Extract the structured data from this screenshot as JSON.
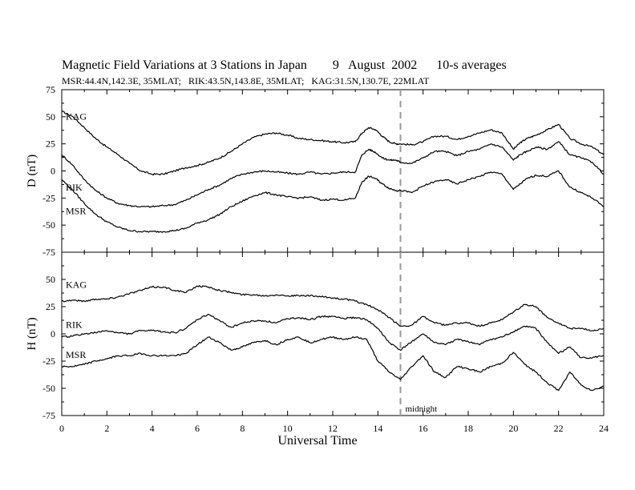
{
  "title": "Magnetic Field Variations at 3 Stations in Japan        9   August  2002      10-s averages",
  "subtitle": "MSR:44.4N,142.3E, 35MLAT;   RIK:43.5N,143.8E, 35MLAT;   KAG:31.5N,130.7E, 22MLAT",
  "chart_data": [
    {
      "type": "line",
      "panel": "D",
      "ylabel": "D (nT)",
      "ylim": [
        -75,
        75
      ],
      "yticks": [
        -75,
        -50,
        -25,
        0,
        25,
        50,
        75
      ],
      "xlim": [
        0,
        24
      ],
      "xticks": [
        0,
        2,
        4,
        6,
        8,
        10,
        12,
        14,
        16,
        18,
        20,
        22,
        24
      ],
      "marker_line_x": 15,
      "series": [
        {
          "name": "KAG",
          "x": [
            0,
            0.5,
            1,
            1.5,
            2,
            2.5,
            3,
            3.5,
            4,
            4.5,
            5,
            5.5,
            6,
            6.5,
            7,
            7.5,
            8,
            8.5,
            9,
            9.5,
            10,
            10.5,
            11,
            11.5,
            12,
            12.5,
            13,
            13.3,
            13.6,
            13.9,
            14.2,
            14.5,
            14.8,
            15,
            15.5,
            16,
            16.5,
            17,
            17.5,
            18,
            18.5,
            19,
            19.5,
            20,
            20.3,
            20.6,
            21,
            21.5,
            22,
            22.5,
            23,
            23.5,
            24
          ],
          "y": [
            55,
            50,
            40,
            30,
            22,
            15,
            7,
            0,
            -3,
            -3,
            0,
            3,
            5,
            8,
            12,
            18,
            25,
            31,
            34,
            35,
            33,
            30,
            29,
            28,
            27,
            26,
            27,
            35,
            40,
            38,
            32,
            27,
            25,
            25,
            24,
            27,
            32,
            32,
            29,
            32,
            35,
            38,
            35,
            20,
            26,
            30,
            33,
            38,
            43,
            30,
            25,
            22,
            15
          ]
        },
        {
          "name": "RIK",
          "x": [
            0,
            0.5,
            1,
            1.5,
            2,
            2.5,
            3,
            3.5,
            4,
            4.5,
            5,
            5.5,
            6,
            6.5,
            7,
            7.5,
            8,
            8.5,
            9,
            9.5,
            10,
            10.5,
            11,
            11.5,
            12,
            12.5,
            13,
            13.3,
            13.6,
            13.9,
            14.2,
            14.5,
            14.8,
            15,
            15.5,
            16,
            16.5,
            17,
            17.5,
            18,
            18.5,
            19,
            19.5,
            20,
            20.3,
            20.6,
            21,
            21.5,
            22,
            22.5,
            23,
            23.5,
            24
          ],
          "y": [
            15,
            5,
            -8,
            -18,
            -25,
            -30,
            -32,
            -33,
            -33,
            -32,
            -31,
            -27,
            -22,
            -17,
            -13,
            -7,
            -3,
            -1,
            0,
            -1,
            -2,
            -3,
            -1,
            -3,
            -2,
            -1,
            -1,
            15,
            20,
            17,
            12,
            10,
            10,
            8,
            7,
            12,
            18,
            18,
            14,
            18,
            20,
            25,
            22,
            10,
            15,
            18,
            22,
            20,
            27,
            15,
            12,
            8,
            -3
          ]
        },
        {
          "name": "MSR",
          "x": [
            0,
            0.5,
            1,
            1.5,
            2,
            2.5,
            3,
            3.5,
            4,
            4.5,
            5,
            5.5,
            6,
            6.5,
            7,
            7.5,
            8,
            8.5,
            9,
            9.5,
            10,
            10.5,
            11,
            11.5,
            12,
            12.5,
            13,
            13.3,
            13.6,
            13.9,
            14.2,
            14.5,
            14.8,
            15,
            15.5,
            16,
            16.5,
            17,
            17.5,
            18,
            18.5,
            19,
            19.5,
            20,
            20.3,
            20.6,
            21,
            21.5,
            22,
            22.5,
            23,
            23.5,
            24
          ],
          "y": [
            -8,
            -18,
            -30,
            -40,
            -47,
            -52,
            -55,
            -56,
            -56,
            -56,
            -55,
            -53,
            -48,
            -45,
            -40,
            -33,
            -28,
            -23,
            -20,
            -22,
            -24,
            -25,
            -24,
            -27,
            -26,
            -27,
            -25,
            -10,
            -5,
            -7,
            -12,
            -16,
            -18,
            -18,
            -20,
            -14,
            -10,
            -8,
            -12,
            -8,
            -5,
            -1,
            -3,
            -17,
            -12,
            -7,
            -4,
            -5,
            0,
            -15,
            -20,
            -25,
            -33
          ]
        }
      ]
    },
    {
      "type": "line",
      "panel": "H",
      "ylabel": "H (nT)",
      "xlabel": "Universal Time",
      "ylim": [
        -75,
        75
      ],
      "yticks": [
        -75,
        -50,
        -25,
        0,
        25,
        50
      ],
      "xlim": [
        0,
        24
      ],
      "xticks": [
        0,
        2,
        4,
        6,
        8,
        10,
        12,
        14,
        16,
        18,
        20,
        22,
        24
      ],
      "marker_line_x": 15,
      "marker_label": "midnight",
      "series": [
        {
          "name": "KAG",
          "x": [
            0,
            0.5,
            1,
            1.5,
            2,
            2.5,
            3,
            3.5,
            4,
            4.5,
            5,
            5.5,
            6,
            6.5,
            7,
            7.5,
            8,
            8.5,
            9,
            9.5,
            10,
            10.5,
            11,
            11.5,
            12,
            12.5,
            13,
            13.5,
            14,
            14.5,
            15,
            15.5,
            16,
            16.5,
            17,
            17.5,
            18,
            18.5,
            19,
            19.5,
            20,
            20.5,
            21,
            21.5,
            22,
            22.5,
            23,
            23.5,
            24
          ],
          "y": [
            30,
            31,
            30,
            32,
            32,
            34,
            37,
            40,
            43,
            43,
            40,
            38,
            44,
            43,
            40,
            38,
            36,
            36,
            35,
            36,
            35,
            35,
            35,
            34,
            33,
            32,
            30,
            27,
            22,
            15,
            7,
            8,
            16,
            10,
            8,
            10,
            10,
            7,
            10,
            13,
            20,
            27,
            25,
            15,
            10,
            5,
            5,
            3,
            5
          ]
        },
        {
          "name": "RIK",
          "x": [
            0,
            0.5,
            1,
            1.5,
            2,
            2.5,
            3,
            3.5,
            4,
            4.5,
            5,
            5.5,
            6,
            6.5,
            7,
            7.5,
            8,
            8.5,
            9,
            9.5,
            10,
            10.5,
            11,
            11.5,
            12,
            12.5,
            13,
            13.5,
            14,
            14.5,
            15,
            15.5,
            16,
            16.5,
            17,
            17.5,
            18,
            18.5,
            19,
            19.5,
            20,
            20.5,
            21,
            21.5,
            22,
            22.5,
            23,
            23.5,
            24
          ],
          "y": [
            -3,
            -2,
            0,
            1,
            3,
            1,
            0,
            3,
            3,
            2,
            1,
            5,
            13,
            18,
            12,
            6,
            10,
            12,
            12,
            10,
            14,
            15,
            13,
            16,
            16,
            14,
            15,
            13,
            5,
            -8,
            -15,
            -7,
            0,
            -8,
            -10,
            -5,
            -7,
            -10,
            -5,
            -3,
            2,
            7,
            5,
            -8,
            -18,
            -12,
            -22,
            -22,
            -20
          ]
        },
        {
          "name": "MSR",
          "x": [
            0,
            0.5,
            1,
            1.5,
            2,
            2.5,
            3,
            3.5,
            4,
            4.5,
            5,
            5.5,
            6,
            6.5,
            7,
            7.5,
            8,
            8.5,
            9,
            9.5,
            10,
            10.5,
            11,
            11.5,
            12,
            12.5,
            13,
            13.5,
            14,
            14.5,
            15,
            15.5,
            16,
            16.5,
            17,
            17.5,
            18,
            18.5,
            19,
            19.5,
            20,
            20.5,
            21,
            21.5,
            22,
            22.5,
            23,
            23.5,
            24
          ],
          "y": [
            -30,
            -30,
            -28,
            -25,
            -23,
            -20,
            -20,
            -18,
            -20,
            -20,
            -20,
            -18,
            -10,
            -3,
            -8,
            -15,
            -12,
            -8,
            -6,
            -10,
            -5,
            -3,
            -8,
            -5,
            -3,
            -5,
            -3,
            -5,
            -25,
            -35,
            -42,
            -30,
            -20,
            -35,
            -40,
            -30,
            -32,
            -35,
            -30,
            -27,
            -17,
            -28,
            -35,
            -45,
            -52,
            -35,
            -47,
            -52,
            -48
          ]
        }
      ]
    }
  ]
}
